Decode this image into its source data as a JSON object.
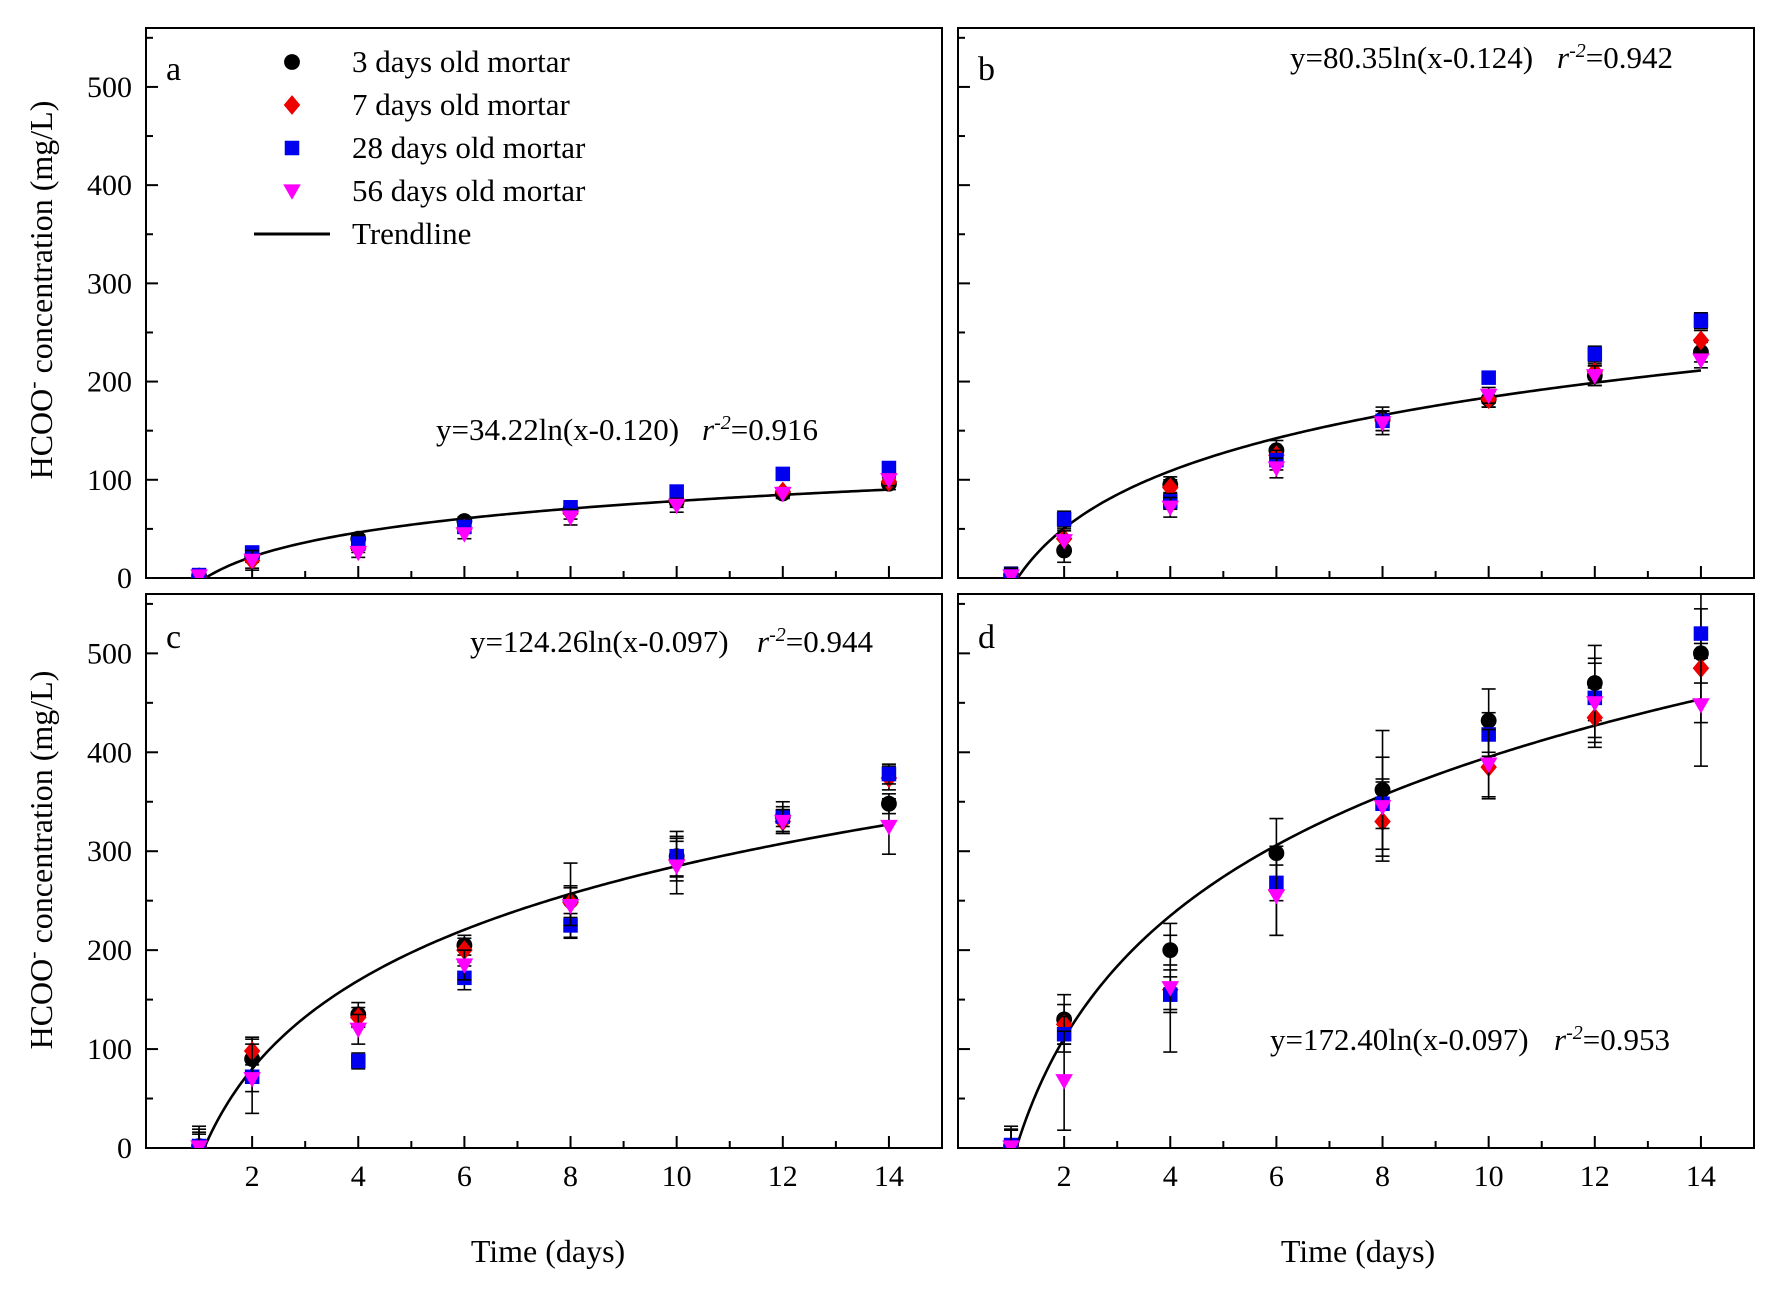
{
  "axes": {
    "y_title_main": "HCOO",
    "y_title_sup": "-",
    "y_title_rest": " concentration (mg/L)",
    "x_title": "Time (days)",
    "x_ticks": [
      2,
      4,
      6,
      8,
      10,
      12,
      14
    ],
    "y_ticks": [
      0,
      100,
      200,
      300,
      400,
      500
    ],
    "xlim": [
      0,
      15
    ],
    "ylim": [
      0,
      560
    ]
  },
  "legend": {
    "items": [
      {
        "label": "3 days old mortar",
        "color": "#000000",
        "marker": "circle"
      },
      {
        "label": "7 days old mortar",
        "color": "#ee0000",
        "marker": "diamond"
      },
      {
        "label": "28 days old mortar",
        "color": "#0000ee",
        "marker": "square"
      },
      {
        "label": "56 days old mortar",
        "color": "#ff00ff",
        "marker": "triangle-down"
      },
      {
        "label": "Trendline",
        "color": "#000000",
        "marker": "line"
      }
    ]
  },
  "chart_data": [
    {
      "type": "scatter",
      "panel": "a",
      "equation": "y=34.22ln(x-0.120)",
      "r2_symbol": "r",
      "r2_sup": "-2",
      "r2_value": "=0.916",
      "trend": {
        "a": 34.22,
        "b": 0.12
      },
      "x": [
        1,
        2,
        4,
        6,
        8,
        10,
        12,
        14
      ],
      "series": [
        {
          "name": "3 days old mortar",
          "values": [
            2,
            22,
            40,
            58,
            70,
            78,
            86,
            96
          ],
          "err": [
            5,
            6,
            4,
            4,
            5,
            4,
            4,
            6
          ]
        },
        {
          "name": "7 days old mortar",
          "values": [
            1,
            18,
            30,
            50,
            66,
            78,
            88,
            98
          ],
          "err": [
            6,
            8,
            4,
            4,
            6,
            6,
            4,
            5
          ]
        },
        {
          "name": "28 days old mortar",
          "values": [
            3,
            26,
            35,
            52,
            72,
            88,
            106,
            112
          ],
          "err": [
            4,
            5,
            4,
            4,
            6,
            5,
            6,
            5
          ]
        },
        {
          "name": "56 days old mortar",
          "values": [
            2,
            18,
            26,
            45,
            62,
            74,
            86,
            100
          ],
          "err": [
            5,
            10,
            5,
            5,
            8,
            7,
            5,
            6
          ]
        }
      ]
    },
    {
      "type": "scatter",
      "panel": "b",
      "equation": "y=80.35ln(x-0.124)",
      "r2_symbol": "r",
      "r2_sup": "-2",
      "r2_value": "=0.942",
      "trend": {
        "a": 80.35,
        "b": 0.124
      },
      "x": [
        1,
        2,
        4,
        6,
        8,
        10,
        12,
        14
      ],
      "series": [
        {
          "name": "3 days old mortar",
          "values": [
            3,
            28,
            95,
            130,
            162,
            182,
            206,
            230
          ],
          "err": [
            8,
            12,
            8,
            10,
            12,
            8,
            10,
            10
          ]
        },
        {
          "name": "7 days old mortar",
          "values": [
            2,
            40,
            92,
            125,
            160,
            182,
            210,
            242
          ],
          "err": [
            8,
            10,
            8,
            8,
            10,
            8,
            8,
            10
          ]
        },
        {
          "name": "28 days old mortar",
          "values": [
            4,
            60,
            78,
            120,
            160,
            204,
            228,
            262
          ],
          "err": [
            6,
            8,
            8,
            10,
            10,
            6,
            8,
            8
          ]
        },
        {
          "name": "56 days old mortar",
          "values": [
            2,
            38,
            72,
            112,
            158,
            186,
            206,
            222
          ],
          "err": [
            8,
            10,
            10,
            10,
            12,
            8,
            10,
            8
          ]
        }
      ]
    },
    {
      "type": "scatter",
      "panel": "c",
      "equation": "y=124.26ln(x-0.097)",
      "r2_symbol": "r",
      "r2_sup": "-2",
      "r2_value": "=0.944",
      "trend": {
        "a": 124.26,
        "b": 0.097
      },
      "x": [
        1,
        2,
        4,
        6,
        8,
        10,
        12,
        14
      ],
      "series": [
        {
          "name": "3 days old mortar",
          "values": [
            2,
            90,
            135,
            205,
            250,
            295,
            335,
            348
          ],
          "err": [
            20,
            20,
            12,
            10,
            38,
            25,
            15,
            10
          ]
        },
        {
          "name": "7 days old mortar",
          "values": [
            1,
            98,
            132,
            200,
            248,
            292,
            330,
            374
          ],
          "err": [
            18,
            14,
            10,
            12,
            15,
            18,
            12,
            12
          ]
        },
        {
          "name": "28 days old mortar",
          "values": [
            2,
            72,
            88,
            172,
            225,
            295,
            335,
            378
          ],
          "err": [
            12,
            15,
            8,
            12,
            12,
            20,
            10,
            10
          ]
        },
        {
          "name": "56 days old mortar",
          "values": [
            1,
            70,
            120,
            185,
            245,
            285,
            330,
            325
          ],
          "err": [
            15,
            35,
            15,
            15,
            20,
            28,
            12,
            28
          ]
        }
      ]
    },
    {
      "type": "scatter",
      "panel": "d",
      "equation": "y=172.40ln(x-0.097)",
      "r2_symbol": "r",
      "r2_sup": "-2",
      "r2_value": "=0.953",
      "trend": {
        "a": 172.4,
        "b": 0.097
      },
      "x": [
        1,
        2,
        4,
        6,
        8,
        10,
        12,
        14
      ],
      "series": [
        {
          "name": "3 days old mortar",
          "values": [
            2,
            130,
            200,
            298,
            362,
            432,
            470,
            500
          ],
          "err": [
            20,
            25,
            15,
            35,
            60,
            32,
            38,
            70
          ]
        },
        {
          "name": "7 days old mortar",
          "values": [
            1,
            125,
            160,
            260,
            330,
            385,
            435,
            485
          ],
          "err": [
            18,
            20,
            20,
            45,
            40,
            30,
            30,
            15
          ]
        },
        {
          "name": "28 days old mortar",
          "values": [
            3,
            115,
            155,
            268,
            348,
            418,
            455,
            520
          ],
          "err": [
            15,
            18,
            18,
            18,
            25,
            22,
            40,
            25
          ]
        },
        {
          "name": "56 days old mortar",
          "values": [
            1,
            68,
            162,
            255,
            345,
            388,
            450,
            448
          ],
          "err": [
            18,
            50,
            65,
            40,
            50,
            35,
            40,
            62
          ]
        }
      ]
    }
  ]
}
